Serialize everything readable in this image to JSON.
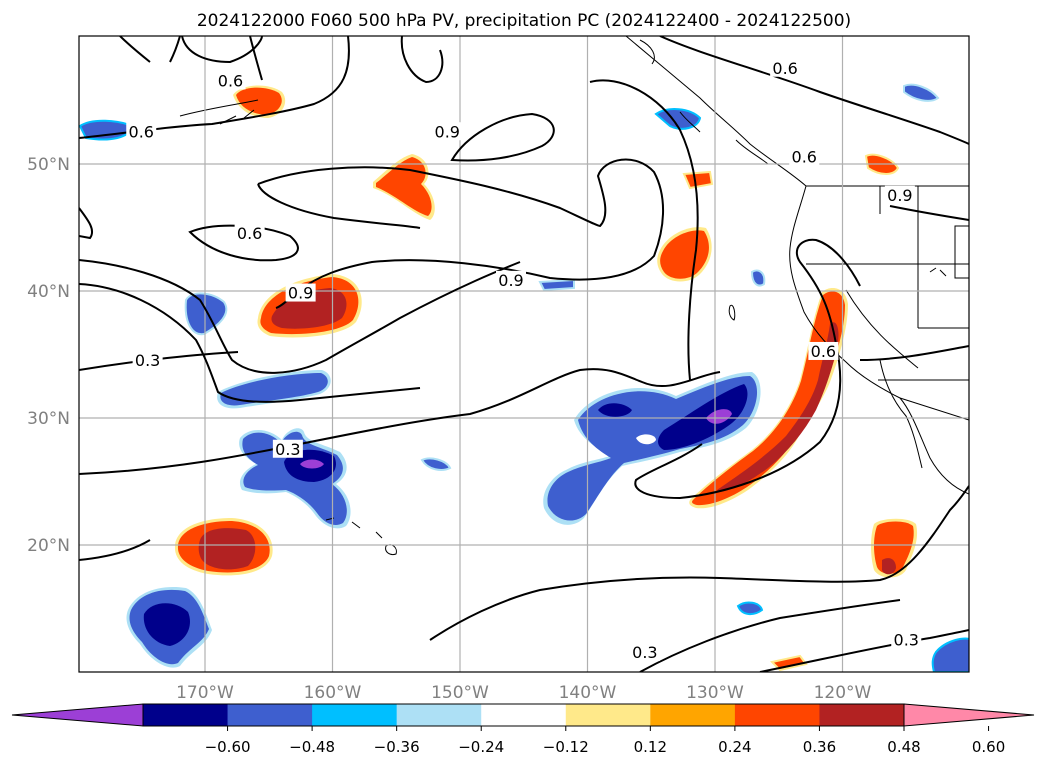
{
  "title": "2024122000 F060 500 hPa PV, precipitation PC (2024122400 - 2024122500)",
  "map": {
    "lon_ticks": [
      {
        "lon": -170,
        "label": "170°W"
      },
      {
        "lon": -160,
        "label": "160°W"
      },
      {
        "lon": -150,
        "label": "150°W"
      },
      {
        "lon": -140,
        "label": "140°W"
      },
      {
        "lon": -130,
        "label": "130°W"
      },
      {
        "lon": -120,
        "label": "120°W"
      }
    ],
    "lat_ticks": [
      {
        "lat": 50,
        "label": "50°N"
      },
      {
        "lat": 40,
        "label": "40°N"
      },
      {
        "lat": 30,
        "label": "30°N"
      },
      {
        "lat": 20,
        "label": "20°N"
      }
    ],
    "contour_labels": [
      {
        "text": "0.6",
        "lon": -168,
        "lat": 56.5
      },
      {
        "text": "0.6",
        "lon": -175,
        "lat": 52.5
      },
      {
        "text": "0.6",
        "lon": -124.5,
        "lat": 57.5
      },
      {
        "text": "0.9",
        "lon": -151,
        "lat": 52.5
      },
      {
        "text": "0.6",
        "lon": -123,
        "lat": 50.5
      },
      {
        "text": "0.9",
        "lon": -115.5,
        "lat": 47.5
      },
      {
        "text": "0.6",
        "lon": -166.5,
        "lat": 44.5
      },
      {
        "text": "0.9",
        "lon": -162.5,
        "lat": 39.8
      },
      {
        "text": "0.9",
        "lon": -146,
        "lat": 40.8
      },
      {
        "text": "0.3",
        "lon": -174.5,
        "lat": 34.5
      },
      {
        "text": "0.3",
        "lon": -163.5,
        "lat": 27.5
      },
      {
        "text": "0.6",
        "lon": -121.5,
        "lat": 35.2
      },
      {
        "text": "0.3",
        "lon": -135.5,
        "lat": 11.5
      },
      {
        "text": "0.3",
        "lon": -115,
        "lat": 12.5
      }
    ]
  },
  "colorbar": {
    "colors": [
      "#9c3fd6",
      "#00008b",
      "#3e5fcf",
      "#00bfff",
      "#ade0f5",
      "#ffffff",
      "#ffe98a",
      "#ffa500",
      "#ff4500",
      "#b22222",
      "#ff88a8"
    ],
    "ticks": [
      "−0.60",
      "−0.48",
      "−0.36",
      "−0.24",
      "−0.12",
      "0.12",
      "0.24",
      "0.36",
      "0.48",
      "0.60"
    ]
  }
}
